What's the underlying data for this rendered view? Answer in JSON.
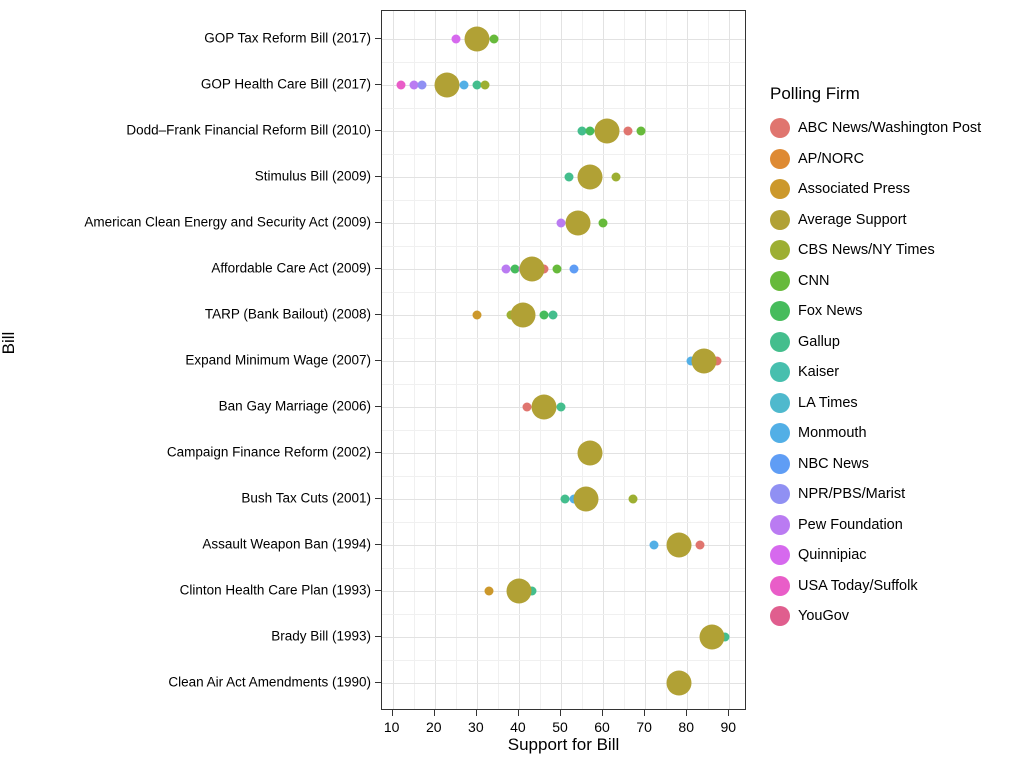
{
  "chart_data": {
    "type": "scatter",
    "title": "",
    "xlabel": "Support for Bill",
    "ylabel": "Bill",
    "legend_title": "Polling Firm",
    "legend_position": "right",
    "grid": "major and minor, light gray on white panel",
    "x_axis": {
      "min": 10,
      "max": 90,
      "ticks": [
        10,
        20,
        30,
        40,
        50,
        60,
        70,
        80,
        90
      ],
      "minor_ticks": [
        15,
        25,
        35,
        45,
        55,
        65,
        75,
        85
      ]
    },
    "point_sizes": {
      "poll": "small",
      "average": "large"
    },
    "firms": [
      {
        "name": "ABC News/Washington Post",
        "color": "#E0756F"
      },
      {
        "name": "AP/NORC",
        "color": "#DE8A33"
      },
      {
        "name": "Associated Press",
        "color": "#CC982B"
      },
      {
        "name": "Average Support",
        "color": "#B1A135"
      },
      {
        "name": "CBS News/NY Times",
        "color": "#9DAF32"
      },
      {
        "name": "CNN",
        "color": "#67BA3B"
      },
      {
        "name": "Fox News",
        "color": "#46BC5C"
      },
      {
        "name": "Gallup",
        "color": "#44BE8D"
      },
      {
        "name": "Kaiser",
        "color": "#47BFAE"
      },
      {
        "name": "LA Times",
        "color": "#4FB9CD"
      },
      {
        "name": "Monmouth",
        "color": "#52AFE6"
      },
      {
        "name": "NBC News",
        "color": "#5F9DF5"
      },
      {
        "name": "NPR/PBS/Marist",
        "color": "#9090F3"
      },
      {
        "name": "Pew Foundation",
        "color": "#BA7BF2"
      },
      {
        "name": "Quinnipiac",
        "color": "#D669EE"
      },
      {
        "name": "USA Today/Suffolk",
        "color": "#E95DC8"
      },
      {
        "name": "YouGov",
        "color": "#E05E8E"
      }
    ],
    "rows": [
      {
        "label": "GOP Tax Reform Bill (2017)",
        "points": [
          {
            "firm": "Quinnipiac",
            "value": 25
          },
          {
            "firm": "Average Support",
            "value": 30
          },
          {
            "firm": "CNN",
            "value": 34
          }
        ]
      },
      {
        "label": "GOP Health Care Bill (2017)",
        "points": [
          {
            "firm": "USA Today/Suffolk",
            "value": 12
          },
          {
            "firm": "Pew Foundation",
            "value": 15
          },
          {
            "firm": "NPR/PBS/Marist",
            "value": 17
          },
          {
            "firm": "Average Support",
            "value": 23
          },
          {
            "firm": "Monmouth",
            "value": 27
          },
          {
            "firm": "Gallup",
            "value": 30
          },
          {
            "firm": "CBS News/NY Times",
            "value": 32
          }
        ]
      },
      {
        "label": "Dodd–Frank Financial Reform Bill (2010)",
        "points": [
          {
            "firm": "Gallup",
            "value": 55
          },
          {
            "firm": "Fox News",
            "value": 57
          },
          {
            "firm": "Average Support",
            "value": 61
          },
          {
            "firm": "ABC News/Washington Post",
            "value": 66
          },
          {
            "firm": "CNN",
            "value": 69
          }
        ]
      },
      {
        "label": "Stimulus Bill (2009)",
        "points": [
          {
            "firm": "Gallup",
            "value": 52
          },
          {
            "firm": "Average Support",
            "value": 57
          },
          {
            "firm": "CBS News/NY Times",
            "value": 63
          }
        ]
      },
      {
        "label": "American Clean Energy and Security Act (2009)",
        "points": [
          {
            "firm": "Pew Foundation",
            "value": 50
          },
          {
            "firm": "Average Support",
            "value": 54
          },
          {
            "firm": "CNN",
            "value": 60
          }
        ]
      },
      {
        "label": "Affordable Care Act (2009)",
        "points": [
          {
            "firm": "Pew Foundation",
            "value": 37
          },
          {
            "firm": "Fox News",
            "value": 39
          },
          {
            "firm": "Quinnipiac",
            "value": 41
          },
          {
            "firm": "Average Support",
            "value": 43
          },
          {
            "firm": "ABC News/Washington Post",
            "value": 46
          },
          {
            "firm": "CNN",
            "value": 49
          },
          {
            "firm": "NBC News",
            "value": 53
          }
        ]
      },
      {
        "label": "TARP (Bank Bailout) (2008)",
        "points": [
          {
            "firm": "Associated Press",
            "value": 30
          },
          {
            "firm": "CBS News/NY Times",
            "value": 38
          },
          {
            "firm": "Average Support",
            "value": 41
          },
          {
            "firm": "Fox News",
            "value": 46
          },
          {
            "firm": "Gallup",
            "value": 48
          }
        ]
      },
      {
        "label": "Expand Minimum Wage (2007)",
        "points": [
          {
            "firm": "Monmouth",
            "value": 81
          },
          {
            "firm": "Average Support",
            "value": 84
          },
          {
            "firm": "ABC News/Washington Post",
            "value": 87
          }
        ]
      },
      {
        "label": "Ban Gay Marriage (2006)",
        "points": [
          {
            "firm": "ABC News/Washington Post",
            "value": 42
          },
          {
            "firm": "Average Support",
            "value": 46
          },
          {
            "firm": "Gallup",
            "value": 50
          }
        ]
      },
      {
        "label": "Campaign Finance Reform (2002)",
        "points": [
          {
            "firm": "Average Support",
            "value": 57
          }
        ]
      },
      {
        "label": "Bush Tax Cuts (2001)",
        "points": [
          {
            "firm": "Gallup",
            "value": 51
          },
          {
            "firm": "Monmouth",
            "value": 53
          },
          {
            "firm": "Average Support",
            "value": 56
          },
          {
            "firm": "CBS News/NY Times",
            "value": 67
          }
        ]
      },
      {
        "label": "Assault Weapon Ban (1994)",
        "points": [
          {
            "firm": "Monmouth",
            "value": 72
          },
          {
            "firm": "Average Support",
            "value": 78
          },
          {
            "firm": "ABC News/Washington Post",
            "value": 83
          }
        ]
      },
      {
        "label": "Clinton Health Care Plan (1993)",
        "points": [
          {
            "firm": "Associated Press",
            "value": 33
          },
          {
            "firm": "Average Support",
            "value": 40
          },
          {
            "firm": "Gallup",
            "value": 43
          }
        ]
      },
      {
        "label": "Brady Bill (1993)",
        "points": [
          {
            "firm": "Average Support",
            "value": 86
          },
          {
            "firm": "Gallup",
            "value": 89
          }
        ]
      },
      {
        "label": "Clean Air Act Amendments (1990)",
        "points": [
          {
            "firm": "Average Support",
            "value": 78
          }
        ]
      }
    ]
  }
}
